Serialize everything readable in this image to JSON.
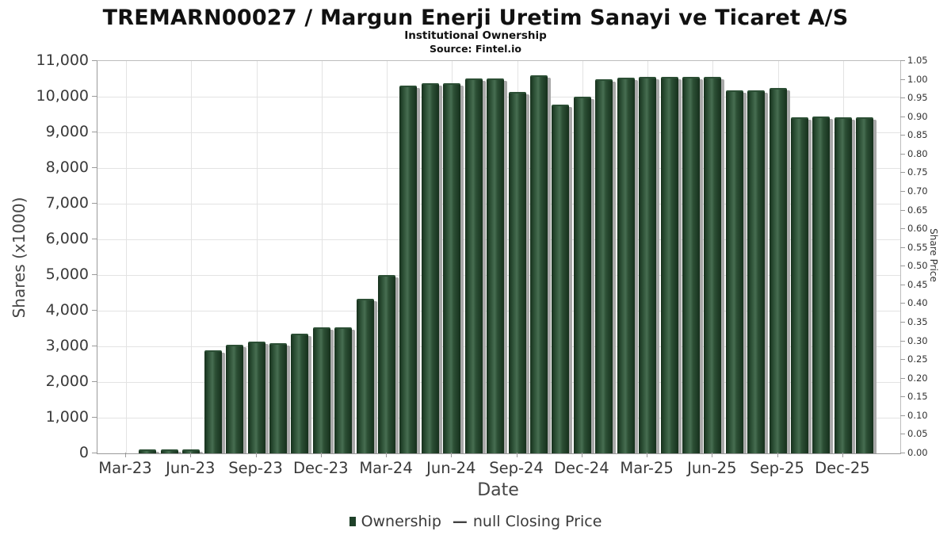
{
  "title": "TREMARN00027 / Margun Enerji Uretim Sanayi ve Ticaret A/S",
  "subtitle": "Institutional Ownership",
  "source": "Source: Fintel.io",
  "legend": {
    "ownership_label": "Ownership",
    "dash": "—",
    "price_label": "null Closing Price"
  },
  "colors": {
    "bar_edge": "#16301c",
    "bar_mid": "#2c4f35",
    "bar_highlight": "#476e51",
    "bar_shadow": "#a8a8a8",
    "legend_marker": "#1e4129",
    "gridline": "#e3e3e3",
    "axis_line": "#9a9a9a",
    "text": "#3a3a3a"
  },
  "chart_data": {
    "type": "bar",
    "title": "TREMARN00027 / Margun Enerji Uretim Sanayi ve Ticaret A/S",
    "subtitle": "Institutional Ownership",
    "source": "Source: Fintel.io",
    "xlabel": "Date",
    "ylabel_left": "Shares (x1000)",
    "ylabel_right": "Share Price",
    "ylim_left": [
      0,
      11000
    ],
    "ylim_right": [
      0,
      1.05
    ],
    "grid": true,
    "legend_position": "bottom",
    "series_name": "Ownership",
    "price_series_name": "null Closing Price",
    "left_ticks": [
      "0",
      "1,000",
      "2,000",
      "3,000",
      "4,000",
      "5,000",
      "6,000",
      "7,000",
      "8,000",
      "9,000",
      "10,000",
      "11,000"
    ],
    "right_ticks": [
      "0.00",
      "0.05",
      "0.10",
      "0.15",
      "0.20",
      "0.25",
      "0.30",
      "0.35",
      "0.40",
      "0.45",
      "0.50",
      "0.55",
      "0.60",
      "0.65",
      "0.70",
      "0.75",
      "0.80",
      "0.85",
      "0.90",
      "0.95",
      "1.00",
      "1.05"
    ],
    "x_ticks": [
      "Mar-23",
      "Jun-23",
      "Sep-23",
      "Dec-23",
      "Mar-24",
      "Jun-24",
      "Sep-24",
      "Dec-24",
      "Mar-25",
      "Jun-25",
      "Sep-25",
      "Dec-25"
    ],
    "categories": [
      "Apr-23",
      "May-23",
      "Jun-23",
      "Jul-23",
      "Aug-23",
      "Sep-23",
      "Oct-23",
      "Nov-23",
      "Dec-23",
      "Jan-24",
      "Feb-24",
      "Mar-24",
      "Apr-24",
      "May-24",
      "Jun-24",
      "Jul-24",
      "Aug-24",
      "Sep-24",
      "Oct-24",
      "Nov-24",
      "Dec-24",
      "Jan-25",
      "Feb-25",
      "Mar-25",
      "Apr-25",
      "May-25",
      "Jun-25",
      "Jul-25",
      "Aug-25",
      "Sep-25",
      "Oct-25",
      "Nov-25",
      "Dec-25",
      "Jan-26"
    ],
    "values": [
      65,
      65,
      65,
      2840,
      3000,
      3090,
      3050,
      3310,
      3490,
      3490,
      4280,
      4950,
      10260,
      10330,
      10330,
      10470,
      10470,
      10080,
      10550,
      9740,
      9960,
      10440,
      10490,
      10500,
      10510,
      10510,
      10520,
      10140,
      10140,
      10190,
      9380,
      9400,
      9380,
      9380
    ]
  }
}
